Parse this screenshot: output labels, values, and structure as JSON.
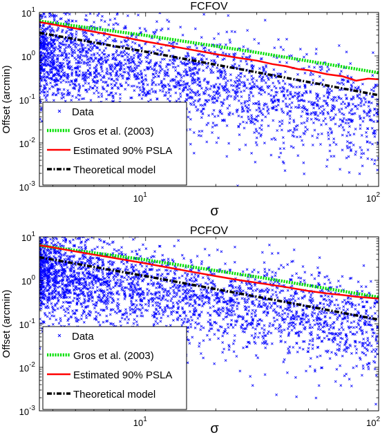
{
  "chart_data": [
    {
      "type": "scatter",
      "title": "FCFOV",
      "xlabel": "σ",
      "ylabel": "Offset (arcmin)",
      "xscale": "log",
      "yscale": "log",
      "xlim": [
        3.5,
        100
      ],
      "ylim": [
        0.001,
        10
      ],
      "x_ticks": [
        {
          "base": "10",
          "exp": "1",
          "value": 10
        },
        {
          "base": "10",
          "exp": "2",
          "value": 100
        }
      ],
      "y_ticks": [
        {
          "base": "10",
          "exp": "1",
          "value": 10
        },
        {
          "base": "10",
          "exp": "0",
          "value": 1
        },
        {
          "base": "10",
          "exp": "-1",
          "value": 0.1
        },
        {
          "base": "10",
          "exp": "-2",
          "value": 0.01
        },
        {
          "base": "10",
          "exp": "-3",
          "value": 0.001
        }
      ],
      "legend_position": "lower-left",
      "series": [
        {
          "name": "Data",
          "kind": "scatter",
          "color": "#0000ff",
          "marker": "x",
          "model": {
            "slope": -0.98,
            "median_at_1": 4.0,
            "spread_dex": 0.55,
            "n_points": 2600
          }
        },
        {
          "name": "Gros et al. (2003)",
          "kind": "line",
          "color": "#00e000",
          "dash": "dotted",
          "x": [
            3.5,
            10,
            30,
            100
          ],
          "y": [
            6.3,
            2.96,
            1.2,
            0.41
          ]
        },
        {
          "name": "Estimated 90% PSLA",
          "kind": "line",
          "color": "#ff0000",
          "dash": "solid",
          "x": [
            3.5,
            4,
            5,
            6,
            7,
            8,
            10,
            12,
            15,
            20,
            25,
            30,
            35,
            40,
            45,
            50,
            60,
            70,
            80,
            90,
            100
          ],
          "y": [
            6.0,
            5.3,
            4.3,
            3.6,
            3.1,
            2.7,
            2.15,
            1.8,
            1.45,
            1.1,
            0.9,
            0.78,
            0.65,
            0.58,
            0.5,
            0.47,
            0.38,
            0.34,
            0.27,
            0.3,
            0.29
          ]
        },
        {
          "name": "Theoretical model",
          "kind": "line",
          "color": "#000000",
          "dash": "dashdot",
          "x": [
            3.5,
            10,
            30,
            100
          ],
          "y": [
            3.4,
            1.25,
            0.42,
            0.125
          ]
        }
      ]
    },
    {
      "type": "scatter",
      "title": "PCFOV",
      "xlabel": "σ",
      "ylabel": "Offset (arcmin)",
      "xscale": "log",
      "yscale": "log",
      "xlim": [
        3.5,
        100
      ],
      "ylim": [
        0.001,
        10
      ],
      "x_ticks": [
        {
          "base": "10",
          "exp": "1",
          "value": 10
        },
        {
          "base": "10",
          "exp": "2",
          "value": 100
        }
      ],
      "y_ticks": [
        {
          "base": "10",
          "exp": "1",
          "value": 10
        },
        {
          "base": "10",
          "exp": "0",
          "value": 1
        },
        {
          "base": "10",
          "exp": "-1",
          "value": 0.1
        },
        {
          "base": "10",
          "exp": "-2",
          "value": 0.01
        },
        {
          "base": "10",
          "exp": "-3",
          "value": 0.001
        }
      ],
      "legend_position": "lower-left",
      "series": [
        {
          "name": "Data",
          "kind": "scatter",
          "color": "#0000ff",
          "marker": "x",
          "model": {
            "slope": -0.92,
            "median_at_1": 5.5,
            "spread_dex": 0.5,
            "n_points": 3000
          }
        },
        {
          "name": "Gros et al. (2003)",
          "kind": "line",
          "color": "#00e000",
          "dash": "dotted",
          "x": [
            3.5,
            10,
            30,
            100
          ],
          "y": [
            6.3,
            2.96,
            1.2,
            0.41
          ]
        },
        {
          "name": "Estimated 90% PSLA",
          "kind": "line",
          "color": "#ff0000",
          "dash": "solid",
          "x": [
            3.5,
            4,
            5,
            6,
            7,
            8,
            10,
            12,
            15,
            20,
            25,
            30,
            35,
            40,
            50,
            60,
            70,
            80,
            90,
            100
          ],
          "y": [
            6.4,
            5.7,
            4.6,
            3.9,
            3.4,
            3.0,
            2.45,
            2.05,
            1.65,
            1.25,
            1.02,
            0.88,
            0.78,
            0.7,
            0.57,
            0.5,
            0.46,
            0.42,
            0.4,
            0.38
          ]
        },
        {
          "name": "Theoretical model",
          "kind": "line",
          "color": "#000000",
          "dash": "dashdot",
          "x": [
            3.5,
            10,
            30,
            100
          ],
          "y": [
            3.4,
            1.25,
            0.42,
            0.125
          ]
        }
      ]
    }
  ]
}
